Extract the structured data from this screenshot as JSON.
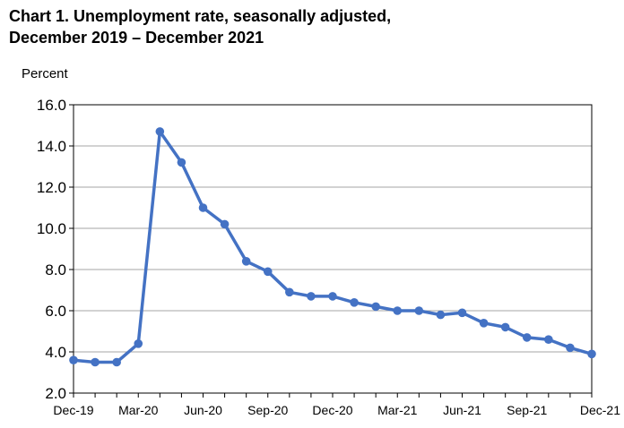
{
  "chart_data": {
    "type": "line",
    "title": "Chart 1. Unemployment rate, seasonally adjusted,",
    "subtitle": "December 2019 – December 2021",
    "ylabel": "Percent",
    "xlabel": "",
    "ylim": [
      2.0,
      16.0
    ],
    "yticks": [
      "2.0",
      "4.0",
      "6.0",
      "8.0",
      "10.0",
      "12.0",
      "14.0",
      "16.0"
    ],
    "ytick_values": [
      2,
      4,
      6,
      8,
      10,
      12,
      14,
      16
    ],
    "xtick_labels": [
      "Dec-19",
      "Mar-20",
      "Jun-20",
      "Sep-20",
      "Dec-20",
      "Mar-21",
      "Jun-21",
      "Sep-21",
      "Dec-21"
    ],
    "xtick_index": [
      0,
      3,
      6,
      9,
      12,
      15,
      18,
      21,
      24
    ],
    "grid": "horizontal",
    "legend": "none",
    "series": [
      {
        "color": "#4472c4",
        "x": [
          "Dec-19",
          "Jan-20",
          "Feb-20",
          "Mar-20",
          "Apr-20",
          "May-20",
          "Jun-20",
          "Jul-20",
          "Aug-20",
          "Sep-20",
          "Oct-20",
          "Nov-20",
          "Dec-20",
          "Jan-21",
          "Feb-21",
          "Mar-21",
          "Apr-21",
          "May-21",
          "Jun-21",
          "Jul-21",
          "Aug-21",
          "Sep-21",
          "Oct-21",
          "Nov-21",
          "Dec-21"
        ],
        "values": [
          3.6,
          3.5,
          3.5,
          4.4,
          14.7,
          13.2,
          11.0,
          10.2,
          8.4,
          7.9,
          6.9,
          6.7,
          6.7,
          6.4,
          6.2,
          6.0,
          6.0,
          5.8,
          5.9,
          5.4,
          5.2,
          4.7,
          4.6,
          4.2,
          3.9
        ]
      }
    ]
  }
}
